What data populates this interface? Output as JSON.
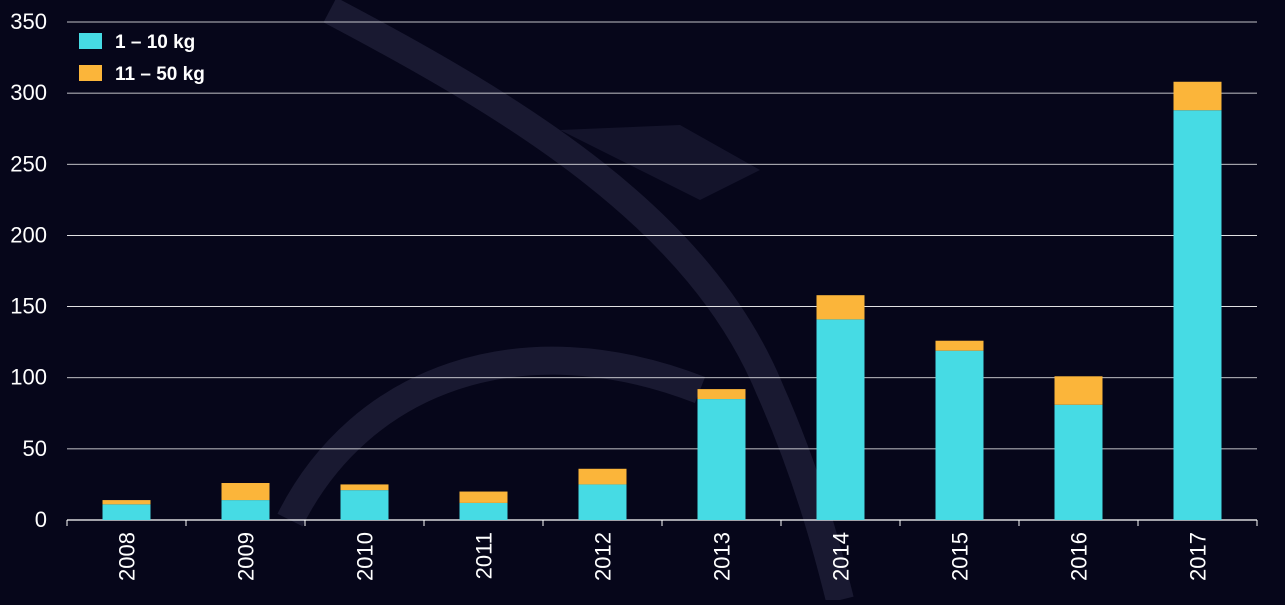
{
  "chart_data": {
    "type": "bar",
    "stacked": true,
    "categories": [
      "2008",
      "2009",
      "2010",
      "2011",
      "2012",
      "2013",
      "2014",
      "2015",
      "2016",
      "2017"
    ],
    "series": [
      {
        "name": "1 – 10 kg",
        "values": [
          11,
          14,
          21,
          12,
          25,
          85,
          141,
          119,
          81,
          288
        ]
      },
      {
        "name": "11 – 50 kg",
        "values": [
          3,
          12,
          4,
          8,
          11,
          7,
          17,
          7,
          20,
          20
        ]
      }
    ],
    "ylim": [
      0,
      350
    ],
    "y_ticks": [
      0,
      50,
      100,
      150,
      200,
      250,
      300,
      350
    ],
    "grid": true,
    "legend_position": "top-left",
    "colors": {
      "background": "#06061a",
      "series": [
        "#46dbe4",
        "#fbb53a"
      ],
      "gridline": "#ffffff",
      "text": "#ffffff"
    }
  }
}
